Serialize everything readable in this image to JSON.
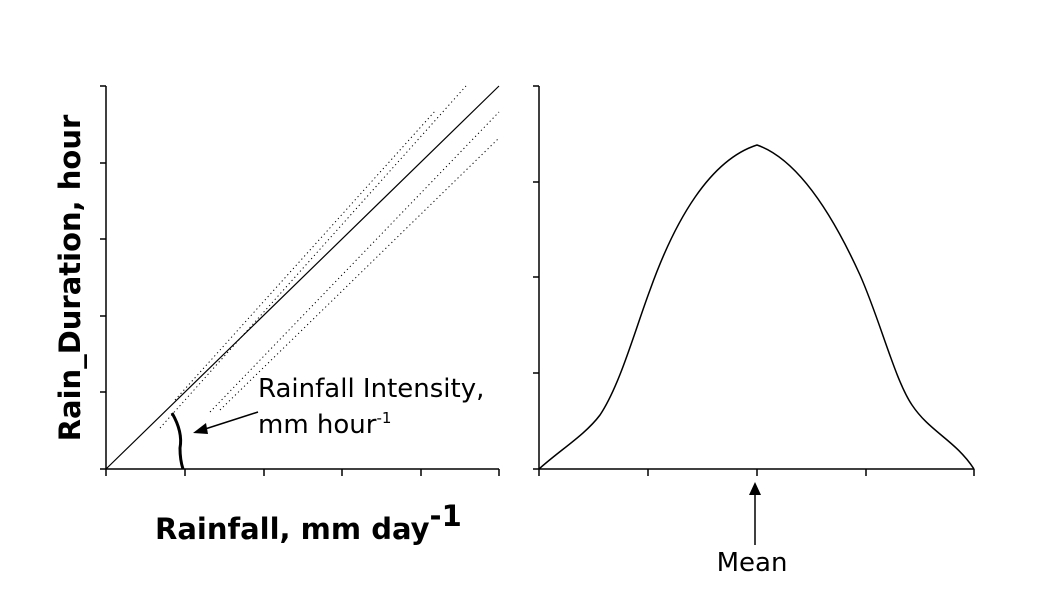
{
  "left_panel": {
    "y_axis_title": "Rain_Duration, hour",
    "x_axis_title": "Rainfall, mm day",
    "x_axis_title_superscript": "-1",
    "annotation_line1": "Rainfall Intensity,",
    "annotation_line2": "mm hour",
    "annotation_line2_superscript": "-1"
  },
  "right_panel": {
    "mean_label": "Mean"
  },
  "colors": {
    "ink": "#000000",
    "background": "#ffffff"
  }
}
